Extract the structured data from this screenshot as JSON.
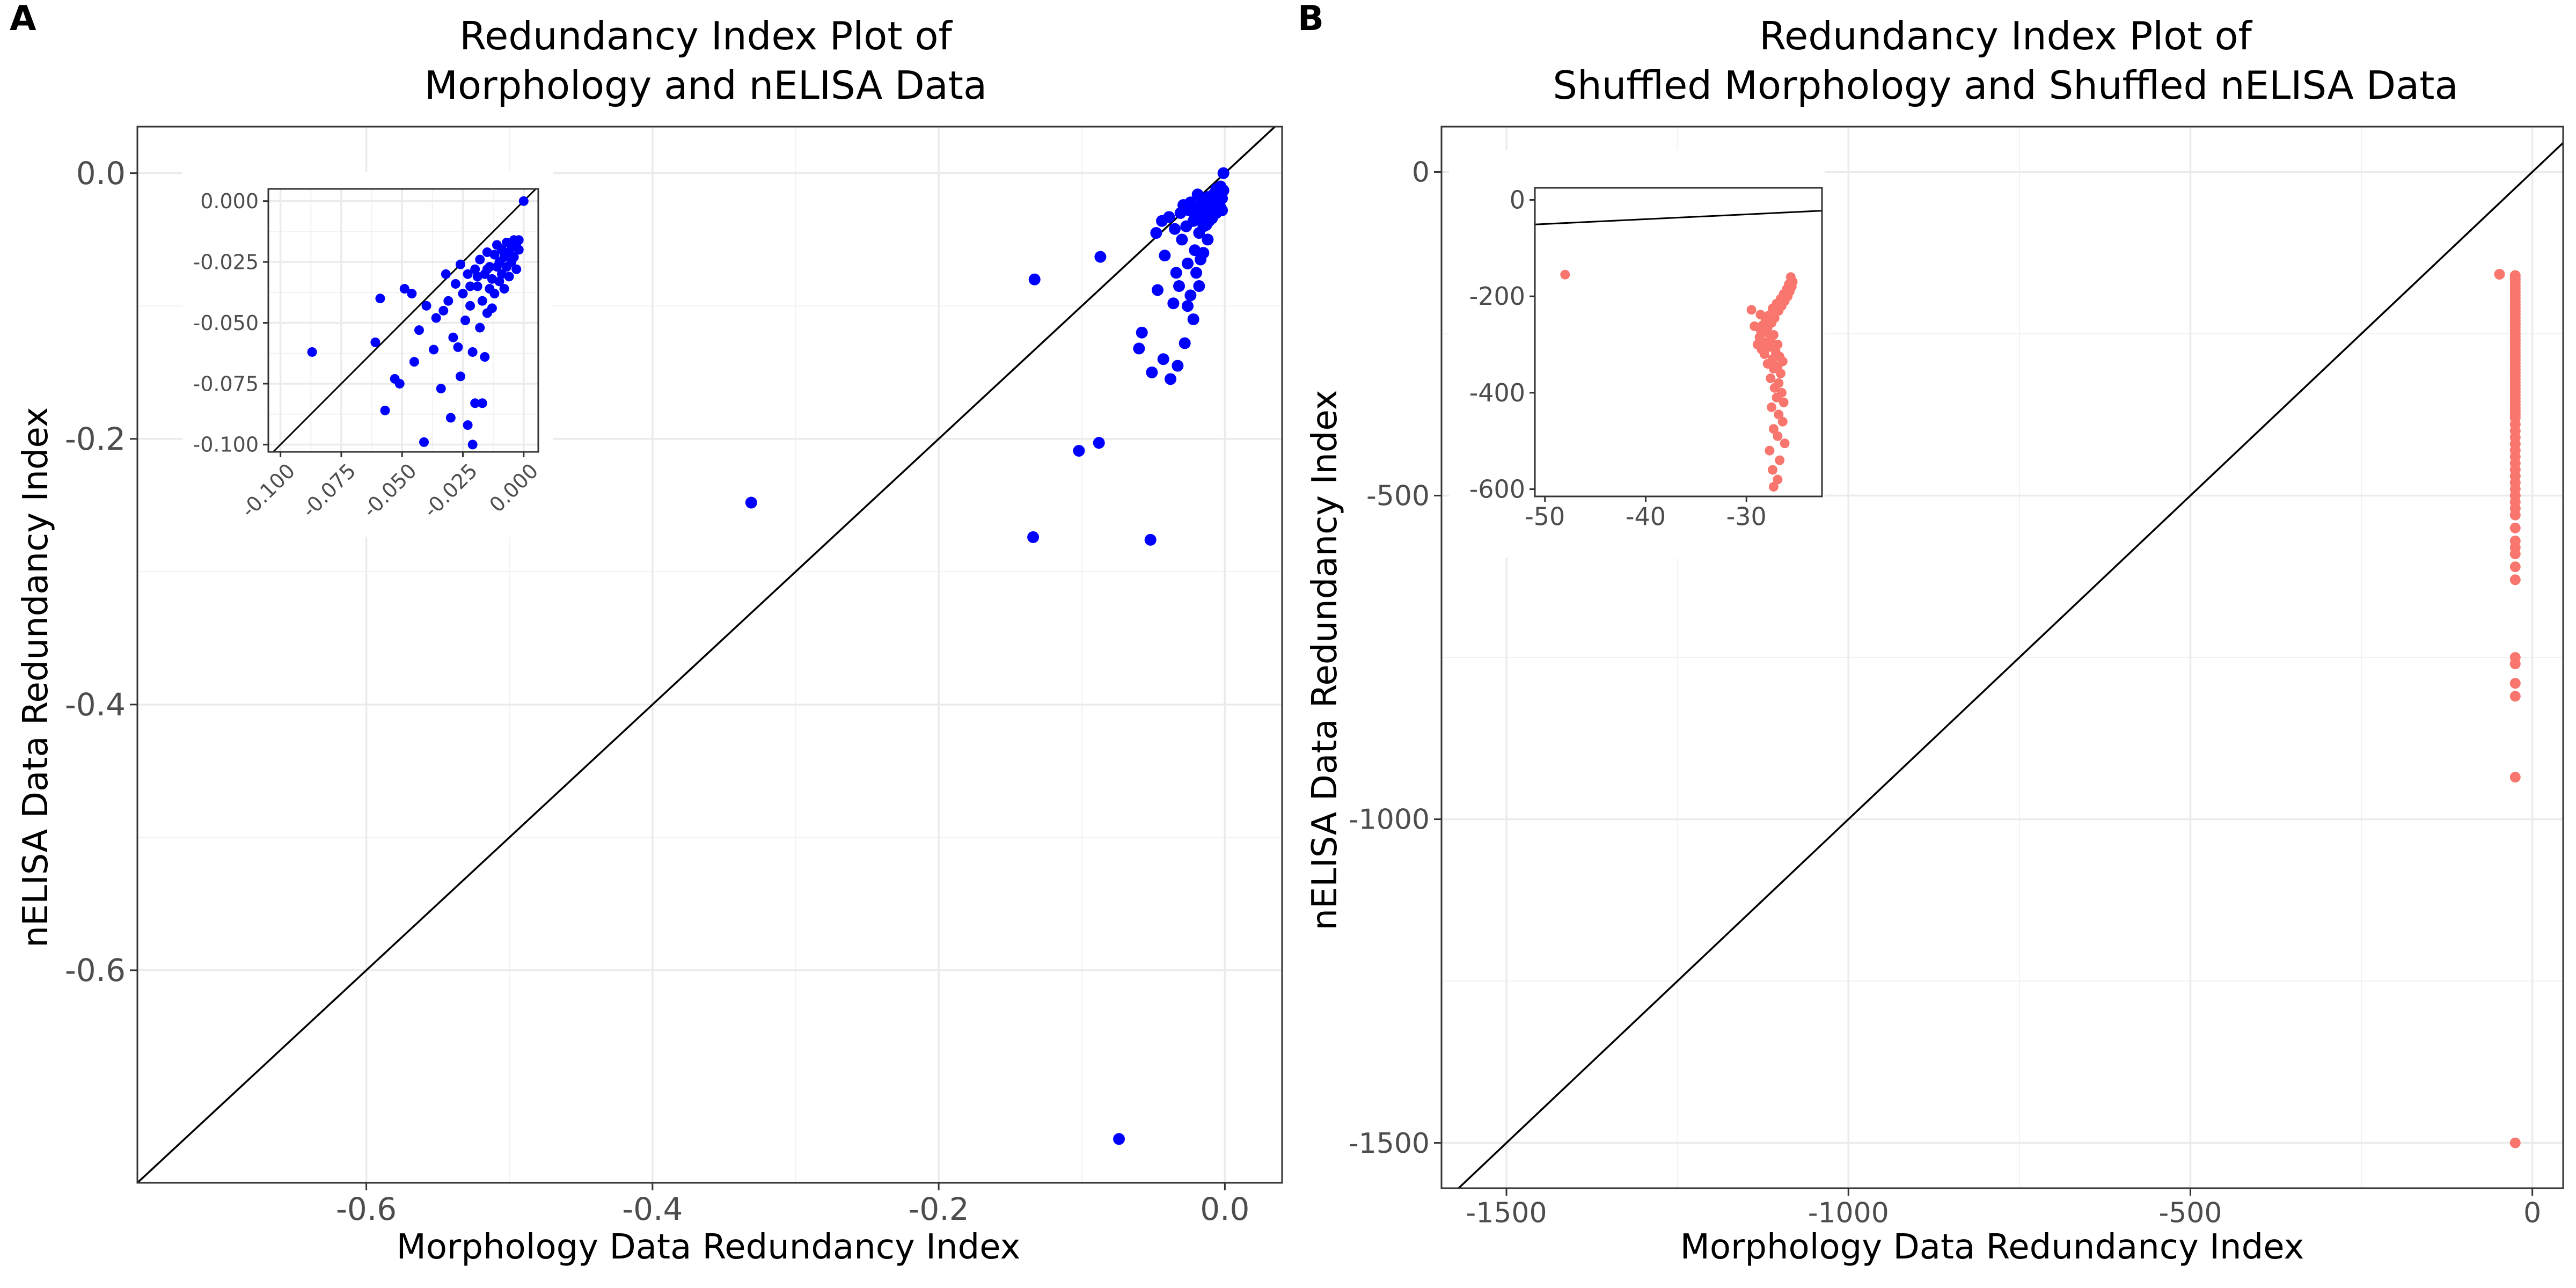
{
  "panel_labels": [
    "A",
    "B"
  ],
  "chart_data": [
    {
      "panel": "A",
      "type": "scatter",
      "title_lines": [
        "Redundancy Index Plot of",
        "Morphology and nELISA Data"
      ],
      "xlabel": "Morphology Data Redundancy Index",
      "ylabel": "nELISA Data Redundancy Index",
      "xlim": [
        -0.76,
        0.04
      ],
      "ylim": [
        -0.76,
        0.035
      ],
      "xticks": [
        -0.6,
        -0.4,
        -0.2,
        0.0
      ],
      "xtick_labels": [
        "-0.6",
        "-0.4",
        "-0.2",
        "0.0"
      ],
      "yticks": [
        -0.6,
        -0.4,
        -0.2,
        0.0
      ],
      "ytick_labels": [
        "-0.6",
        "-0.4",
        "-0.2",
        "0.0"
      ],
      "grid": true,
      "reference_line": "y = x",
      "point_color": "#0000ff",
      "points": [
        [
          -0.074,
          -0.727
        ],
        [
          -0.331,
          -0.248
        ],
        [
          -0.134,
          -0.274
        ],
        [
          -0.052,
          -0.276
        ],
        [
          -0.102,
          -0.209
        ],
        [
          -0.088,
          -0.203
        ],
        [
          -0.133,
          -0.08
        ],
        [
          -0.087,
          -0.063
        ],
        [
          -0.06,
          -0.132
        ],
        [
          -0.051,
          -0.15
        ],
        [
          -0.058,
          -0.12
        ],
        [
          -0.043,
          -0.14
        ],
        [
          -0.038,
          -0.155
        ],
        [
          -0.033,
          -0.145
        ],
        [
          -0.028,
          -0.128
        ],
        [
          -0.024,
          -0.092
        ],
        [
          -0.022,
          -0.11
        ],
        [
          -0.02,
          -0.075
        ],
        [
          -0.018,
          -0.085
        ],
        [
          -0.015,
          -0.06
        ],
        [
          -0.012,
          -0.05
        ],
        [
          -0.047,
          -0.088
        ],
        [
          -0.042,
          -0.062
        ],
        [
          -0.034,
          -0.075
        ],
        [
          -0.03,
          -0.05
        ],
        [
          -0.026,
          -0.068
        ],
        [
          -0.048,
          -0.045
        ],
        [
          -0.044,
          -0.036
        ],
        [
          -0.039,
          -0.033
        ],
        [
          -0.035,
          -0.042
        ],
        [
          -0.031,
          -0.03
        ],
        [
          -0.027,
          -0.04
        ],
        [
          -0.025,
          -0.028
        ],
        [
          -0.022,
          -0.036
        ],
        [
          -0.02,
          -0.026
        ],
        [
          -0.018,
          -0.045
        ],
        [
          -0.016,
          -0.033
        ],
        [
          -0.014,
          -0.024
        ],
        [
          -0.013,
          -0.039
        ],
        [
          -0.011,
          -0.029
        ],
        [
          -0.01,
          -0.02
        ],
        [
          -0.009,
          -0.034
        ],
        [
          -0.008,
          -0.025
        ],
        [
          -0.007,
          -0.018
        ],
        [
          -0.006,
          -0.03
        ],
        [
          -0.005,
          -0.022
        ],
        [
          -0.004,
          -0.015
        ],
        [
          -0.003,
          -0.026
        ],
        [
          -0.002,
          -0.019
        ],
        [
          -0.001,
          -0.013
        ],
        [
          -0.012,
          -0.018
        ],
        [
          -0.016,
          -0.02
        ],
        [
          -0.019,
          -0.016
        ],
        [
          -0.024,
          -0.022
        ],
        [
          -0.029,
          -0.024
        ],
        [
          -0.021,
          -0.031
        ],
        [
          -0.017,
          -0.027
        ],
        [
          -0.013,
          -0.029
        ],
        [
          -0.009,
          -0.026
        ],
        [
          -0.006,
          -0.012
        ],
        [
          -0.003,
          -0.01
        ],
        [
          -0.002,
          -0.028
        ],
        [
          -0.008,
          -0.016
        ],
        [
          -0.011,
          -0.036
        ],
        [
          -0.015,
          -0.04
        ],
        [
          -0.036,
          -0.098
        ],
        [
          -0.032,
          -0.085
        ],
        [
          -0.026,
          -0.1
        ],
        [
          -0.021,
          -0.058
        ],
        [
          -0.017,
          -0.065
        ],
        [
          -0.001,
          0.0
        ]
      ],
      "inset": {
        "xlim": [
          -0.105,
          0.006
        ],
        "ylim": [
          -0.103,
          0.005
        ],
        "xticks": [
          -0.1,
          -0.075,
          -0.05,
          -0.025,
          0.0
        ],
        "xtick_labels": [
          "-0.100",
          "-0.075",
          "-0.050",
          "-0.025",
          "0.000"
        ],
        "yticks": [
          -0.1,
          -0.075,
          -0.05,
          -0.025,
          0.0
        ],
        "ytick_labels": [
          "-0.100",
          "-0.075",
          "-0.050",
          "-0.025",
          "0.000"
        ],
        "xtick_rotation": -45,
        "points": [
          [
            -0.087,
            -0.062
          ],
          [
            -0.061,
            -0.058
          ],
          [
            -0.059,
            -0.04
          ],
          [
            -0.057,
            -0.086
          ],
          [
            -0.053,
            -0.073
          ],
          [
            -0.051,
            -0.075
          ],
          [
            -0.049,
            -0.036
          ],
          [
            -0.046,
            -0.038
          ],
          [
            -0.045,
            -0.066
          ],
          [
            -0.043,
            -0.053
          ],
          [
            -0.041,
            -0.099
          ],
          [
            -0.04,
            -0.043
          ],
          [
            -0.037,
            -0.061
          ],
          [
            -0.036,
            -0.048
          ],
          [
            -0.034,
            -0.077
          ],
          [
            -0.033,
            -0.045
          ],
          [
            -0.032,
            -0.03
          ],
          [
            -0.031,
            -0.041
          ],
          [
            -0.03,
            -0.089
          ],
          [
            -0.029,
            -0.056
          ],
          [
            -0.028,
            -0.034
          ],
          [
            -0.027,
            -0.06
          ],
          [
            -0.026,
            -0.072
          ],
          [
            -0.026,
            -0.026
          ],
          [
            -0.025,
            -0.038
          ],
          [
            -0.024,
            -0.049
          ],
          [
            -0.023,
            -0.092
          ],
          [
            -0.023,
            -0.03
          ],
          [
            -0.022,
            -0.043
          ],
          [
            -0.021,
            -0.1
          ],
          [
            -0.021,
            -0.062
          ],
          [
            -0.02,
            -0.028
          ],
          [
            -0.02,
            -0.083
          ],
          [
            -0.019,
            -0.035
          ],
          [
            -0.018,
            -0.052
          ],
          [
            -0.018,
            -0.024
          ],
          [
            -0.017,
            -0.041
          ],
          [
            -0.017,
            -0.083
          ],
          [
            -0.016,
            -0.03
          ],
          [
            -0.016,
            -0.064
          ],
          [
            -0.015,
            -0.021
          ],
          [
            -0.015,
            -0.046
          ],
          [
            -0.014,
            -0.036
          ],
          [
            -0.014,
            -0.027
          ],
          [
            -0.013,
            -0.032
          ],
          [
            -0.013,
            -0.044
          ],
          [
            -0.012,
            -0.022
          ],
          [
            -0.012,
            -0.038
          ],
          [
            -0.011,
            -0.027
          ],
          [
            -0.011,
            -0.018
          ],
          [
            -0.01,
            -0.033
          ],
          [
            -0.01,
            -0.025
          ],
          [
            -0.009,
            -0.02
          ],
          [
            -0.009,
            -0.03
          ],
          [
            -0.008,
            -0.023
          ],
          [
            -0.008,
            -0.036
          ],
          [
            -0.007,
            -0.017
          ],
          [
            -0.007,
            -0.027
          ],
          [
            -0.006,
            -0.021
          ],
          [
            -0.006,
            -0.031
          ],
          [
            -0.005,
            -0.019
          ],
          [
            -0.005,
            -0.025
          ],
          [
            -0.004,
            -0.016
          ],
          [
            -0.004,
            -0.023
          ],
          [
            -0.003,
            -0.018
          ],
          [
            -0.003,
            -0.028
          ],
          [
            -0.002,
            -0.02
          ],
          [
            -0.002,
            -0.016
          ],
          [
            -0.019,
            -0.031
          ],
          [
            -0.022,
            -0.035
          ],
          [
            -0.015,
            -0.028
          ],
          [
            0.0,
            0.0
          ]
        ]
      }
    },
    {
      "panel": "B",
      "type": "scatter",
      "title_lines": [
        "Redundancy Index Plot of",
        "Shuffled Morphology and Shuffled nELISA Data"
      ],
      "xlabel": "Morphology Data Redundancy Index",
      "ylabel": "nELISA Data Redundancy Index",
      "xlim": [
        -1595,
        45
      ],
      "ylim": [
        -1570,
        70
      ],
      "xticks": [
        -1500,
        -1000,
        -500,
        0
      ],
      "xtick_labels": [
        "-1500",
        "-1000",
        "-500",
        "0"
      ],
      "yticks": [
        -1500,
        -1000,
        -500,
        0
      ],
      "ytick_labels": [
        "-1500",
        "-1000",
        "-500",
        "0"
      ],
      "grid": true,
      "reference_line": "y = x",
      "point_color": "#f8766d",
      "x_strip": -25,
      "strip_y_values": [
        -160,
        -165,
        -170,
        -175,
        -180,
        -185,
        -190,
        -195,
        -200,
        -205,
        -210,
        -215,
        -220,
        -225,
        -230,
        -235,
        -240,
        -245,
        -250,
        -255,
        -260,
        -265,
        -270,
        -275,
        -280,
        -285,
        -290,
        -295,
        -300,
        -305,
        -310,
        -315,
        -320,
        -325,
        -330,
        -335,
        -340,
        -345,
        -350,
        -355,
        -360,
        -365,
        -370,
        -375,
        -380,
        -390,
        -400,
        -410,
        -420,
        -430,
        -440,
        -450,
        -460,
        -470,
        -480,
        -490,
        -500,
        -510,
        -520,
        -530,
        -550,
        -570,
        -580,
        -590,
        -610,
        -630,
        -750,
        -760,
        -790,
        -810,
        -935,
        -1500
      ],
      "extra_points": [
        [
          -48,
          -158
        ]
      ],
      "inset": {
        "xlim": [
          -51,
          -22.5
        ],
        "ylim": [
          -615,
          25
        ],
        "xticks": [
          -50,
          -40,
          -30
        ],
        "xtick_labels": [
          "-50",
          "-40",
          "-30"
        ],
        "yticks": [
          -600,
          -400,
          -200,
          0
        ],
        "ytick_labels": [
          "-600",
          "-400",
          "-200",
          "0"
        ],
        "points": [
          [
            -48,
            -155
          ],
          [
            -25.6,
            -160
          ],
          [
            -25.4,
            -170
          ],
          [
            -25.8,
            -175
          ],
          [
            -25.5,
            -180
          ],
          [
            -26.0,
            -185
          ],
          [
            -25.7,
            -190
          ],
          [
            -26.3,
            -195
          ],
          [
            -25.9,
            -200
          ],
          [
            -26.6,
            -205
          ],
          [
            -26.2,
            -210
          ],
          [
            -27.0,
            -215
          ],
          [
            -26.5,
            -220
          ],
          [
            -27.4,
            -225
          ],
          [
            -26.8,
            -230
          ],
          [
            -27.8,
            -240
          ],
          [
            -27.2,
            -245
          ],
          [
            -28.1,
            -250
          ],
          [
            -27.5,
            -255
          ],
          [
            -28.4,
            -260
          ],
          [
            -27.9,
            -265
          ],
          [
            -28.6,
            -270
          ],
          [
            -28.0,
            -275
          ],
          [
            -27.3,
            -280
          ],
          [
            -28.7,
            -285
          ],
          [
            -27.6,
            -290
          ],
          [
            -28.3,
            -295
          ],
          [
            -26.9,
            -300
          ],
          [
            -27.7,
            -305
          ],
          [
            -28.5,
            -310
          ],
          [
            -27.1,
            -315
          ],
          [
            -28.2,
            -320
          ],
          [
            -26.7,
            -325
          ],
          [
            -27.4,
            -330
          ],
          [
            -26.4,
            -335
          ],
          [
            -27.9,
            -340
          ],
          [
            -26.9,
            -345
          ],
          [
            -27.3,
            -350
          ],
          [
            -26.6,
            -360
          ],
          [
            -27.6,
            -370
          ],
          [
            -26.8,
            -380
          ],
          [
            -27.2,
            -390
          ],
          [
            -26.5,
            -400
          ],
          [
            -27.0,
            -410
          ],
          [
            -26.3,
            -420
          ],
          [
            -27.5,
            -430
          ],
          [
            -26.8,
            -445
          ],
          [
            -26.4,
            -460
          ],
          [
            -27.3,
            -475
          ],
          [
            -26.9,
            -490
          ],
          [
            -26.2,
            -505
          ],
          [
            -27.7,
            -520
          ],
          [
            -26.7,
            -540
          ],
          [
            -27.4,
            -560
          ],
          [
            -26.9,
            -580
          ],
          [
            -27.3,
            -595
          ],
          [
            -29.5,
            -228
          ],
          [
            -29.2,
            -262
          ],
          [
            -28.9,
            -300
          ],
          [
            -28.6,
            -238
          ]
        ]
      }
    }
  ]
}
